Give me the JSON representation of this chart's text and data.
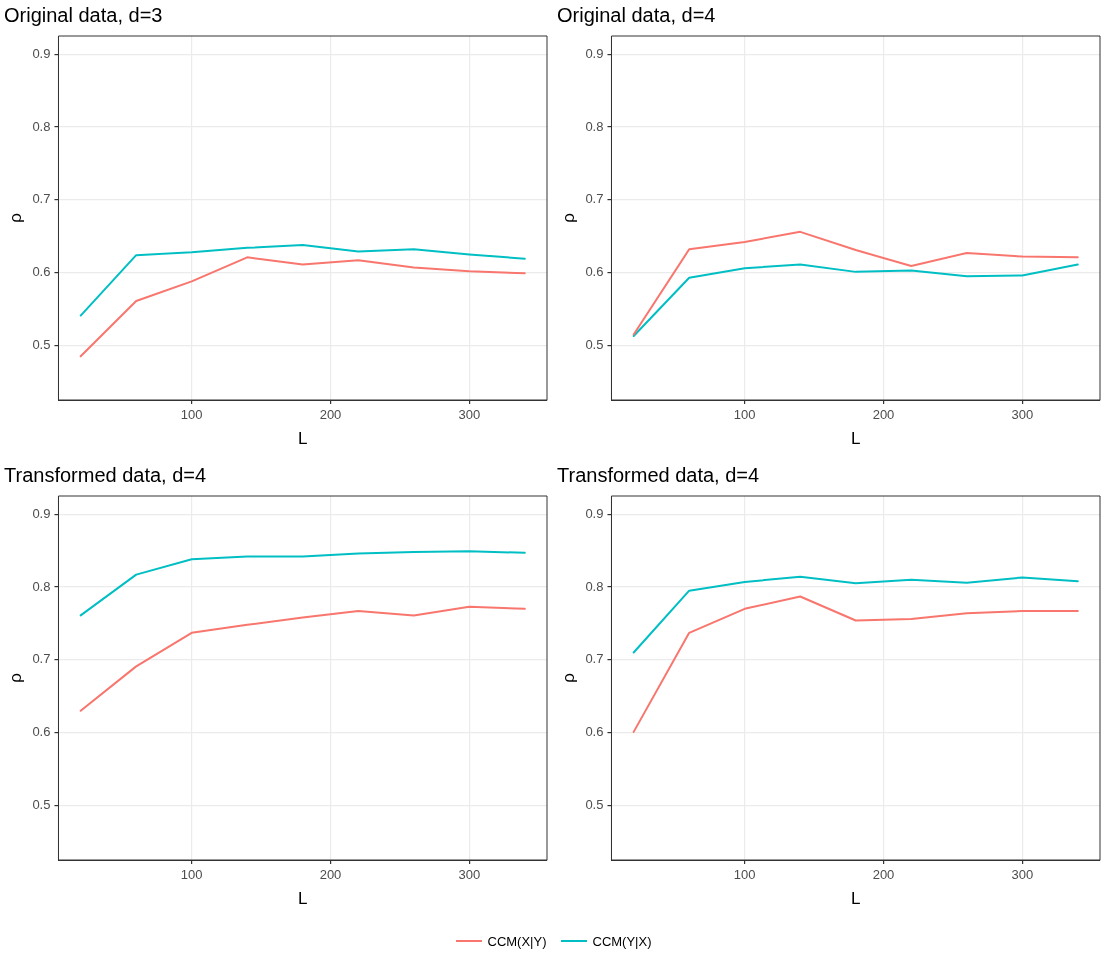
{
  "chart_data": [
    {
      "type": "line",
      "legend": "bottom",
      "title": "Original data, d=3",
      "xlabel": "L",
      "ylabel": "ρ",
      "x": [
        20,
        60,
        100,
        140,
        180,
        220,
        260,
        300,
        340
      ],
      "xlim": [
        4,
        356
      ],
      "xticks": [
        100,
        200,
        300
      ],
      "ylim": [
        0.425,
        0.925
      ],
      "yticks": [
        0.5,
        0.6,
        0.7,
        0.8,
        0.9
      ],
      "grid": true,
      "marker": "none",
      "line_style": "solid",
      "series": [
        {
          "name": "CCM(X|Y)",
          "color": "#f8766d",
          "values": [
            0.485,
            0.561,
            0.588,
            0.621,
            0.611,
            0.617,
            0.607,
            0.602,
            0.599
          ]
        },
        {
          "name": "CCM(Y|X)",
          "color": "#00bfc4",
          "values": [
            0.541,
            0.624,
            0.628,
            0.634,
            0.638,
            0.629,
            0.632,
            0.625,
            0.619
          ]
        }
      ]
    },
    {
      "type": "line",
      "legend": "bottom",
      "title": "Original data, d=4",
      "xlabel": "L",
      "ylabel": "ρ",
      "x": [
        20,
        60,
        100,
        140,
        180,
        220,
        260,
        300,
        340
      ],
      "xlim": [
        4,
        356
      ],
      "xticks": [
        100,
        200,
        300
      ],
      "ylim": [
        0.425,
        0.925
      ],
      "yticks": [
        0.5,
        0.6,
        0.7,
        0.8,
        0.9
      ],
      "grid": true,
      "marker": "none",
      "line_style": "solid",
      "series": [
        {
          "name": "CCM(X|Y)",
          "color": "#f8766d",
          "values": [
            0.515,
            0.632,
            0.642,
            0.656,
            0.631,
            0.609,
            0.627,
            0.622,
            0.621
          ]
        },
        {
          "name": "CCM(Y|X)",
          "color": "#00bfc4",
          "values": [
            0.513,
            0.593,
            0.606,
            0.611,
            0.601,
            0.603,
            0.595,
            0.596,
            0.611
          ]
        }
      ]
    },
    {
      "type": "line",
      "legend": "bottom",
      "title": "Transformed data, d=4",
      "xlabel": "L",
      "ylabel": "ρ",
      "x": [
        20,
        60,
        100,
        140,
        180,
        220,
        260,
        300,
        340
      ],
      "xlim": [
        4,
        356
      ],
      "xticks": [
        100,
        200,
        300
      ],
      "ylim": [
        0.425,
        0.925
      ],
      "yticks": [
        0.5,
        0.6,
        0.7,
        0.8,
        0.9
      ],
      "grid": true,
      "marker": "none",
      "line_style": "solid",
      "series": [
        {
          "name": "CCM(X|Y)",
          "color": "#f8766d",
          "values": [
            0.63,
            0.691,
            0.737,
            0.748,
            0.758,
            0.767,
            0.761,
            0.773,
            0.77
          ]
        },
        {
          "name": "CCM(Y|X)",
          "color": "#00bfc4",
          "values": [
            0.761,
            0.817,
            0.838,
            0.842,
            0.842,
            0.846,
            0.848,
            0.849,
            0.847
          ]
        }
      ]
    },
    {
      "type": "line",
      "title": "Transformed data, d=4",
      "xlabel": "L",
      "ylabel": "ρ",
      "x": [
        20,
        60,
        100,
        140,
        180,
        220,
        260,
        300,
        340
      ],
      "xlim": [
        4,
        356
      ],
      "xticks": [
        100,
        200,
        300
      ],
      "ylim": [
        0.425,
        0.925
      ],
      "yticks": [
        0.5,
        0.6,
        0.7,
        0.8,
        0.9
      ],
      "grid": true,
      "marker": "none",
      "line_style": "solid",
      "legend": "bottom",
      "series": [
        {
          "name": "CCM(X|Y)",
          "color": "#f8766d",
          "values": [
            0.601,
            0.737,
            0.77,
            0.787,
            0.754,
            0.756,
            0.764,
            0.767,
            0.767
          ]
        },
        {
          "name": "CCM(Y|X)",
          "color": "#00bfc4",
          "values": [
            0.71,
            0.795,
            0.807,
            0.814,
            0.805,
            0.81,
            0.806,
            0.813,
            0.808
          ]
        }
      ]
    }
  ]
}
